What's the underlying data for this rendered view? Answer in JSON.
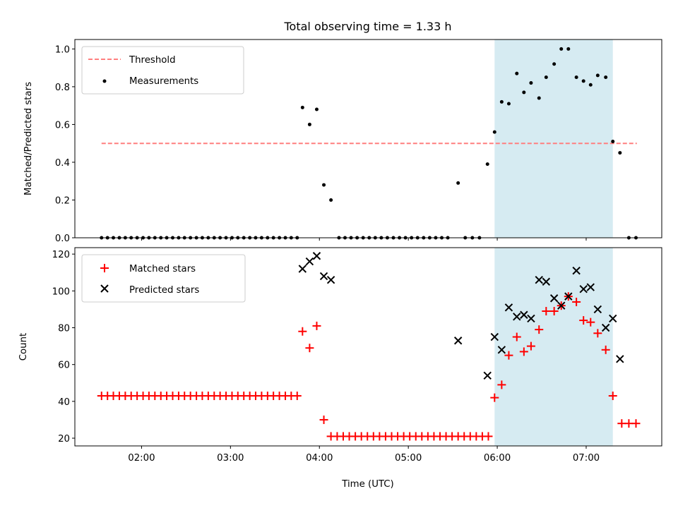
{
  "chart_data": {
    "title": "Total observing time = 1.33 h",
    "xlabel": "Time (UTC)",
    "x_unit": "hours UTC",
    "xlim": [
      1.25,
      7.85
    ],
    "xticks": [
      2,
      3,
      4,
      5,
      6,
      7
    ],
    "xtick_labels": [
      "02:00",
      "03:00",
      "04:00",
      "05:00",
      "06:00",
      "07:00"
    ],
    "highlight_span": {
      "x": [
        5.97,
        7.3
      ],
      "color": "#add8e6"
    },
    "colors": {
      "threshold": "#ff7f7f",
      "measurements": "#000000",
      "matched": "#ff0000",
      "predicted": "#000000",
      "span": "#add8e6"
    },
    "panels": [
      {
        "type": "scatter",
        "ylabel": "Matched/Predicted stars",
        "ylim": [
          0,
          1.05
        ],
        "yticks": [
          0.0,
          0.2,
          0.4,
          0.6,
          0.8,
          1.0
        ],
        "ytick_labels": [
          "0.0",
          "0.2",
          "0.4",
          "0.6",
          "0.8",
          "1.0"
        ],
        "legend": {
          "position": "upper-left",
          "entries": [
            "Threshold",
            "Measurements"
          ]
        },
        "threshold": {
          "name": "Threshold",
          "y": 0.5,
          "x": [
            1.55,
            7.57
          ]
        },
        "series": [
          {
            "name": "Measurements",
            "points": [
              [
                1.55,
                0
              ],
              [
                1.617,
                0
              ],
              [
                1.683,
                0
              ],
              [
                1.75,
                0
              ],
              [
                1.817,
                0
              ],
              [
                1.883,
                0
              ],
              [
                1.95,
                0
              ],
              [
                2.017,
                0
              ],
              [
                2.083,
                0
              ],
              [
                2.15,
                0
              ],
              [
                2.217,
                0
              ],
              [
                2.283,
                0
              ],
              [
                2.35,
                0
              ],
              [
                2.417,
                0
              ],
              [
                2.483,
                0
              ],
              [
                2.55,
                0
              ],
              [
                2.617,
                0
              ],
              [
                2.683,
                0
              ],
              [
                2.75,
                0
              ],
              [
                2.817,
                0
              ],
              [
                2.883,
                0
              ],
              [
                2.95,
                0
              ],
              [
                3.017,
                0
              ],
              [
                3.083,
                0
              ],
              [
                3.15,
                0
              ],
              [
                3.217,
                0
              ],
              [
                3.283,
                0
              ],
              [
                3.35,
                0
              ],
              [
                3.417,
                0
              ],
              [
                3.483,
                0
              ],
              [
                3.55,
                0
              ],
              [
                3.617,
                0
              ],
              [
                3.683,
                0
              ],
              [
                3.75,
                0
              ],
              [
                3.81,
                0.69
              ],
              [
                3.89,
                0.6
              ],
              [
                3.97,
                0.68
              ],
              [
                4.05,
                0.28
              ],
              [
                4.13,
                0.2
              ],
              [
                4.22,
                0
              ],
              [
                4.288,
                0
              ],
              [
                4.356,
                0
              ],
              [
                4.424,
                0
              ],
              [
                4.492,
                0
              ],
              [
                4.56,
                0
              ],
              [
                4.628,
                0
              ],
              [
                4.696,
                0
              ],
              [
                4.764,
                0
              ],
              [
                4.832,
                0
              ],
              [
                4.9,
                0
              ],
              [
                4.968,
                0
              ],
              [
                5.036,
                0
              ],
              [
                5.104,
                0
              ],
              [
                5.172,
                0
              ],
              [
                5.24,
                0
              ],
              [
                5.308,
                0
              ],
              [
                5.376,
                0
              ],
              [
                5.444,
                0
              ],
              [
                5.56,
                0.29
              ],
              [
                5.64,
                0
              ],
              [
                5.72,
                0
              ],
              [
                5.8,
                0
              ],
              [
                5.89,
                0.39
              ],
              [
                5.97,
                0.56
              ],
              [
                6.05,
                0.72
              ],
              [
                6.13,
                0.71
              ],
              [
                6.22,
                0.87
              ],
              [
                6.3,
                0.77
              ],
              [
                6.38,
                0.82
              ],
              [
                6.47,
                0.74
              ],
              [
                6.55,
                0.85
              ],
              [
                6.64,
                0.92
              ],
              [
                6.72,
                1.0
              ],
              [
                6.8,
                1.0
              ],
              [
                6.89,
                0.85
              ],
              [
                6.97,
                0.83
              ],
              [
                7.05,
                0.81
              ],
              [
                7.13,
                0.86
              ],
              [
                7.22,
                0.85
              ],
              [
                7.3,
                0.51
              ],
              [
                7.38,
                0.45
              ],
              [
                7.48,
                0
              ],
              [
                7.56,
                0
              ]
            ]
          }
        ]
      },
      {
        "type": "scatter",
        "ylabel": "Count",
        "ylim": [
          15.8,
          123.5
        ],
        "yticks": [
          20,
          40,
          60,
          80,
          100,
          120
        ],
        "ytick_labels": [
          "20",
          "40",
          "60",
          "80",
          "100",
          "120"
        ],
        "legend": {
          "position": "upper-left",
          "entries": [
            "Matched stars",
            "Predicted stars"
          ]
        },
        "series": [
          {
            "name": "Matched stars",
            "marker": "plus",
            "points": [
              [
                1.55,
                43
              ],
              [
                1.617,
                43
              ],
              [
                1.683,
                43
              ],
              [
                1.75,
                43
              ],
              [
                1.817,
                43
              ],
              [
                1.883,
                43
              ],
              [
                1.95,
                43
              ],
              [
                2.017,
                43
              ],
              [
                2.083,
                43
              ],
              [
                2.15,
                43
              ],
              [
                2.217,
                43
              ],
              [
                2.283,
                43
              ],
              [
                2.35,
                43
              ],
              [
                2.417,
                43
              ],
              [
                2.483,
                43
              ],
              [
                2.55,
                43
              ],
              [
                2.617,
                43
              ],
              [
                2.683,
                43
              ],
              [
                2.75,
                43
              ],
              [
                2.817,
                43
              ],
              [
                2.883,
                43
              ],
              [
                2.95,
                43
              ],
              [
                3.017,
                43
              ],
              [
                3.083,
                43
              ],
              [
                3.15,
                43
              ],
              [
                3.217,
                43
              ],
              [
                3.283,
                43
              ],
              [
                3.35,
                43
              ],
              [
                3.417,
                43
              ],
              [
                3.483,
                43
              ],
              [
                3.55,
                43
              ],
              [
                3.617,
                43
              ],
              [
                3.683,
                43
              ],
              [
                3.75,
                43
              ],
              [
                3.81,
                78
              ],
              [
                3.89,
                69
              ],
              [
                3.97,
                81
              ],
              [
                4.05,
                30
              ],
              [
                4.13,
                21
              ],
              [
                4.2,
                21
              ],
              [
                4.268,
                21
              ],
              [
                4.336,
                21
              ],
              [
                4.404,
                21
              ],
              [
                4.472,
                21
              ],
              [
                4.54,
                21
              ],
              [
                4.608,
                21
              ],
              [
                4.676,
                21
              ],
              [
                4.744,
                21
              ],
              [
                4.812,
                21
              ],
              [
                4.88,
                21
              ],
              [
                4.948,
                21
              ],
              [
                5.016,
                21
              ],
              [
                5.084,
                21
              ],
              [
                5.152,
                21
              ],
              [
                5.22,
                21
              ],
              [
                5.288,
                21
              ],
              [
                5.356,
                21
              ],
              [
                5.424,
                21
              ],
              [
                5.492,
                21
              ],
              [
                5.56,
                21
              ],
              [
                5.628,
                21
              ],
              [
                5.696,
                21
              ],
              [
                5.764,
                21
              ],
              [
                5.832,
                21
              ],
              [
                5.9,
                21
              ],
              [
                5.97,
                42
              ],
              [
                6.05,
                49
              ],
              [
                6.13,
                65
              ],
              [
                6.22,
                75
              ],
              [
                6.3,
                67
              ],
              [
                6.38,
                70
              ],
              [
                6.47,
                79
              ],
              [
                6.55,
                89
              ],
              [
                6.64,
                89
              ],
              [
                6.72,
                92
              ],
              [
                6.8,
                97
              ],
              [
                6.89,
                94
              ],
              [
                6.97,
                84
              ],
              [
                7.05,
                83
              ],
              [
                7.13,
                77
              ],
              [
                7.22,
                68
              ],
              [
                7.3,
                43
              ],
              [
                7.4,
                28
              ],
              [
                7.48,
                28
              ],
              [
                7.56,
                28
              ]
            ]
          },
          {
            "name": "Predicted stars",
            "marker": "x",
            "points": [
              [
                3.81,
                112
              ],
              [
                3.89,
                116
              ],
              [
                3.97,
                119
              ],
              [
                4.05,
                108
              ],
              [
                4.13,
                106
              ],
              [
                5.56,
                73
              ],
              [
                5.89,
                54
              ],
              [
                5.97,
                75
              ],
              [
                6.05,
                68
              ],
              [
                6.13,
                91
              ],
              [
                6.22,
                86
              ],
              [
                6.3,
                87
              ],
              [
                6.38,
                85
              ],
              [
                6.47,
                106
              ],
              [
                6.55,
                105
              ],
              [
                6.64,
                96
              ],
              [
                6.72,
                92
              ],
              [
                6.8,
                97
              ],
              [
                6.89,
                111
              ],
              [
                6.97,
                101
              ],
              [
                7.05,
                102
              ],
              [
                7.13,
                90
              ],
              [
                7.22,
                80
              ],
              [
                7.3,
                85
              ],
              [
                7.38,
                63
              ]
            ]
          }
        ]
      }
    ]
  }
}
